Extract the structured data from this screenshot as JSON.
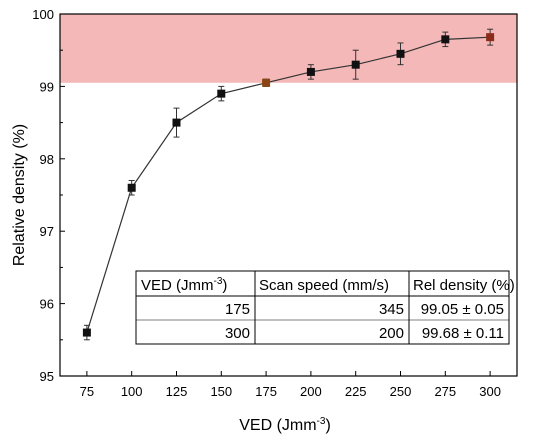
{
  "chart_data": {
    "type": "scatter",
    "title": "",
    "xlabel": "VED (Jmm",
    "xlabel_sup": "-3",
    "xlabel_end": ")",
    "ylabel": "Relative density (%)",
    "xlim": [
      60,
      315
    ],
    "ylim": [
      95,
      100
    ],
    "x_ticks": [
      75,
      100,
      125,
      150,
      175,
      200,
      225,
      250,
      275,
      300
    ],
    "y_ticks": [
      95,
      96,
      97,
      98,
      99,
      100
    ],
    "x_tick_labels": [
      "75",
      "100",
      "125",
      "150",
      "175",
      "200",
      "225",
      "250",
      "275",
      "300"
    ],
    "y_tick_labels": [
      "95",
      "96",
      "97",
      "98",
      "99",
      "100"
    ],
    "grid": false,
    "shaded_band": {
      "y_from": 99.05,
      "y_to": 100,
      "color": "#f4b8b8"
    },
    "series": [
      {
        "x": [
          75,
          100,
          125,
          150,
          175,
          200,
          225,
          250,
          275,
          300
        ],
        "y": [
          95.6,
          97.6,
          98.5,
          98.9,
          99.05,
          99.2,
          99.3,
          99.45,
          99.65,
          99.68
        ],
        "err": [
          0.1,
          0.1,
          0.2,
          0.1,
          0.05,
          0.1,
          0.2,
          0.15,
          0.1,
          0.11
        ],
        "colors": [
          "#111111",
          "#111111",
          "#111111",
          "#111111",
          "#8b4513",
          "#111111",
          "#111111",
          "#111111",
          "#111111",
          "#8b2c1a"
        ]
      }
    ],
    "table": {
      "headers": [
        "VED (Jmm",
        "-3",
        ")",
        "Scan speed (mm/s)",
        "Rel density (%)"
      ],
      "rows": [
        {
          "ved": "175",
          "speed": "345",
          "density": "99.05 ± 0.05",
          "ved_color": "#8b4513"
        },
        {
          "ved": "300",
          "speed": "200",
          "density": "99.68 ± 0.11",
          "ved_color": "#8b2c1a"
        }
      ]
    }
  }
}
